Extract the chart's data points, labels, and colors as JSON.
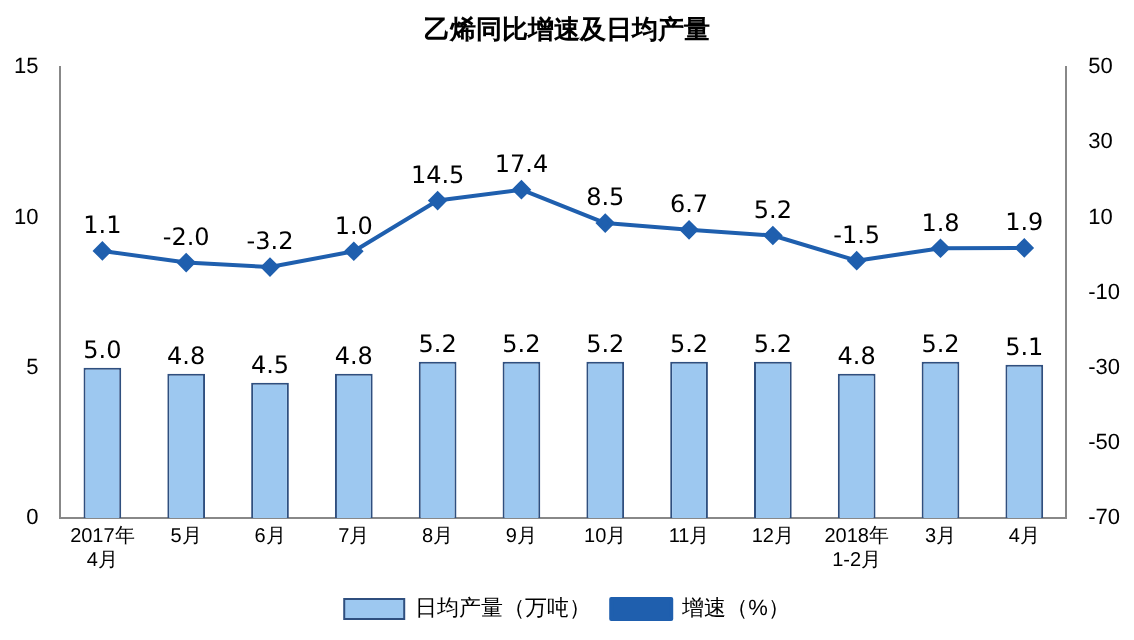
{
  "chart_data": {
    "type": "bar",
    "title": "乙烯同比增速及日均产量",
    "categories": [
      "2017年\n4月",
      "5月",
      "6月",
      "7月",
      "8月",
      "9月",
      "10月",
      "11月",
      "12月",
      "2018年\n1-2月",
      "3月",
      "4月"
    ],
    "series": [
      {
        "name": "日均产量（万吨）",
        "color": "#9dc8f0",
        "values": [
          5.0,
          4.8,
          4.5,
          4.8,
          5.2,
          5.2,
          5.2,
          5.2,
          5.2,
          4.8,
          5.2,
          5.1
        ],
        "value_labels": [
          "5.0",
          "4.8",
          "4.5",
          "4.8",
          "5.2",
          "5.2",
          "5.2",
          "5.2",
          "5.2",
          "4.8",
          "5.2",
          "5.1"
        ]
      },
      {
        "name": "增速（%）",
        "type": "line",
        "axis": "y2",
        "color": "#1f5fae",
        "values": [
          1.1,
          -2.0,
          -3.2,
          1.0,
          14.5,
          17.4,
          8.5,
          6.7,
          5.2,
          -1.5,
          1.8,
          1.9
        ],
        "value_labels": [
          "1.1",
          "-2.0",
          "-3.2",
          "1.0",
          "14.5",
          "17.4",
          "8.5",
          "6.7",
          "5.2",
          "-1.5",
          "1.8",
          "1.9"
        ]
      }
    ],
    "ylim": [
      0,
      15
    ],
    "yticks": [
      0,
      5,
      10,
      15
    ],
    "y2lim": [
      -70,
      50
    ],
    "y2ticks": [
      -70,
      -50,
      -30,
      -10,
      10,
      30,
      50
    ],
    "legend": "bottom",
    "marker": "diamond"
  }
}
